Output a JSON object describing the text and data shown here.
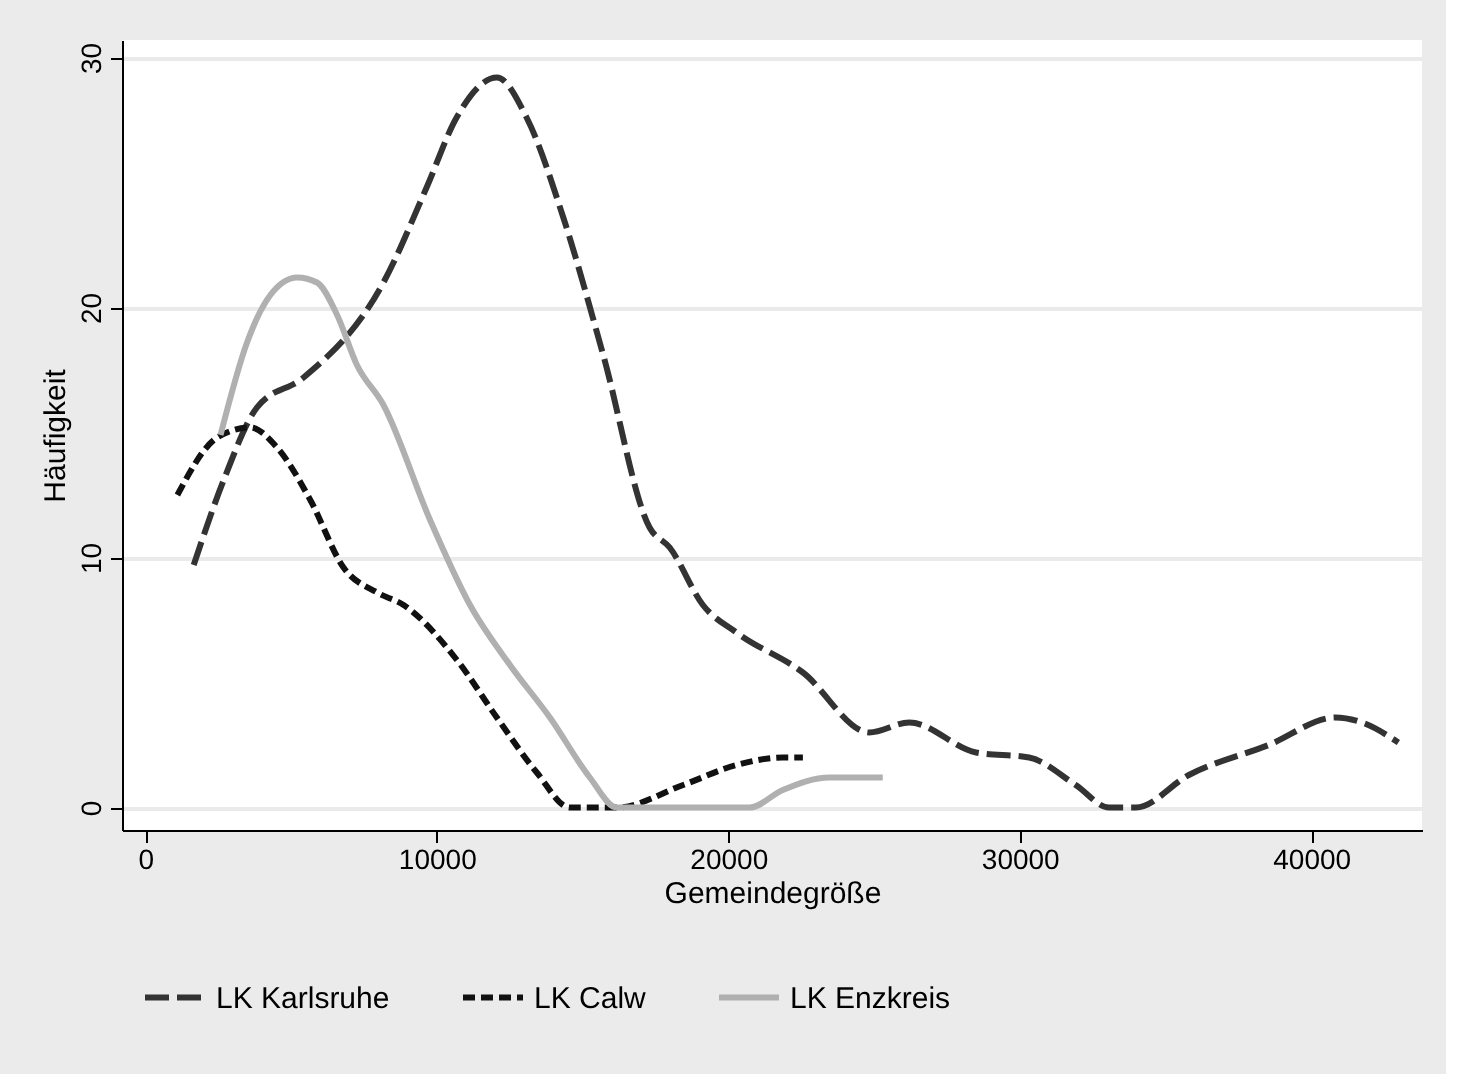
{
  "chart_data": {
    "type": "line",
    "xlabel": "Gemeindegröße",
    "ylabel": "Häufigkeit",
    "xlim": [
      -800,
      43800
    ],
    "ylim": [
      -0.9,
      30.7
    ],
    "xticks": [
      0,
      10000,
      20000,
      30000,
      40000
    ],
    "yticks": [
      0,
      10,
      20,
      30
    ],
    "grid": "y",
    "legend": "bottom",
    "marker": "none",
    "series": [
      {
        "name": "LK Karlsruhe",
        "color": "#333333",
        "line_style": "dashed",
        "x": [
          1660,
          2690,
          3830,
          5430,
          8170,
          9650,
          10680,
          12060,
          13080,
          14340,
          15710,
          17300,
          17990,
          19130,
          20280,
          22560,
          24840,
          26210,
          28500,
          30320,
          31920,
          33060,
          33980,
          35800,
          38540,
          40830,
          41740,
          42990
        ],
        "values": [
          9.7,
          13.1,
          16.0,
          17.2,
          21.0,
          24.8,
          27.6,
          29.2,
          27.6,
          23.6,
          18.1,
          11.2,
          10.4,
          8.1,
          7.0,
          5.4,
          3.0,
          3.4,
          2.2,
          2.0,
          0.9,
          0,
          0,
          1.3,
          2.5,
          3.6,
          3.4,
          2.6
        ]
      },
      {
        "name": "LK Calw",
        "color": "#111111",
        "line_style": "dotted",
        "x": [
          1100,
          2470,
          3600,
          4520,
          5660,
          6800,
          7950,
          8860,
          10690,
          12060,
          13430,
          14560,
          16170,
          18450,
          20280,
          21870,
          22560
        ],
        "values": [
          12.5,
          14.8,
          15.2,
          14.4,
          12.3,
          9.6,
          8.6,
          8.1,
          5.9,
          3.6,
          1.4,
          0,
          0,
          0.9,
          1.7,
          2.0,
          2.0
        ]
      },
      {
        "name": "LK Enzkreis",
        "color": "#b0b0b0",
        "line_style": "solid",
        "x": [
          2580,
          3490,
          4290,
          5210,
          5890,
          6580,
          7260,
          8170,
          9770,
          11140,
          12510,
          13880,
          15250,
          16170,
          20730,
          21870,
          23470,
          25300
        ],
        "values": [
          14.9,
          18.6,
          20.5,
          21.2,
          21.0,
          19.7,
          17.7,
          16.1,
          11.5,
          8.1,
          5.7,
          3.6,
          1.2,
          0,
          0,
          0.7,
          1.2,
          1.2
        ]
      }
    ]
  }
}
